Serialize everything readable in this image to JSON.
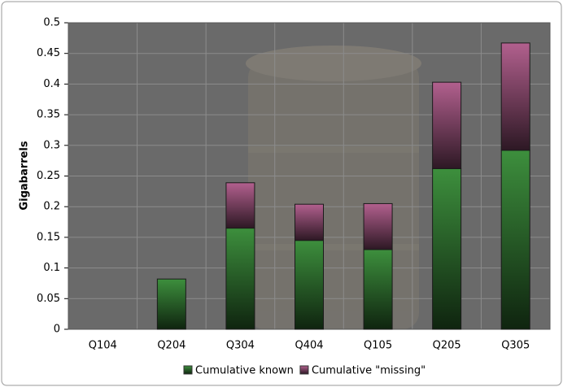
{
  "chart_data": {
    "type": "stacked-bar",
    "y_label": "Gigabarrels",
    "categories": [
      "Q104",
      "Q204",
      "Q304",
      "Q404",
      "Q105",
      "Q205",
      "Q305"
    ],
    "series": [
      {
        "name": "Cumulative known",
        "color": "#3d8f3d",
        "values": [
          0,
          0.082,
          0.165,
          0.145,
          0.13,
          0.262,
          0.292
        ]
      },
      {
        "name": "Cumulative \"missing\"",
        "color": "#b2608e",
        "values": [
          0,
          0,
          0.074,
          0.059,
          0.075,
          0.141,
          0.175
        ]
      }
    ],
    "ylim": [
      0,
      0.5
    ],
    "yticks": [
      0,
      0.05,
      0.1,
      0.15,
      0.2,
      0.25,
      0.3,
      0.35,
      0.4,
      0.45,
      0.5
    ],
    "grid": true
  }
}
